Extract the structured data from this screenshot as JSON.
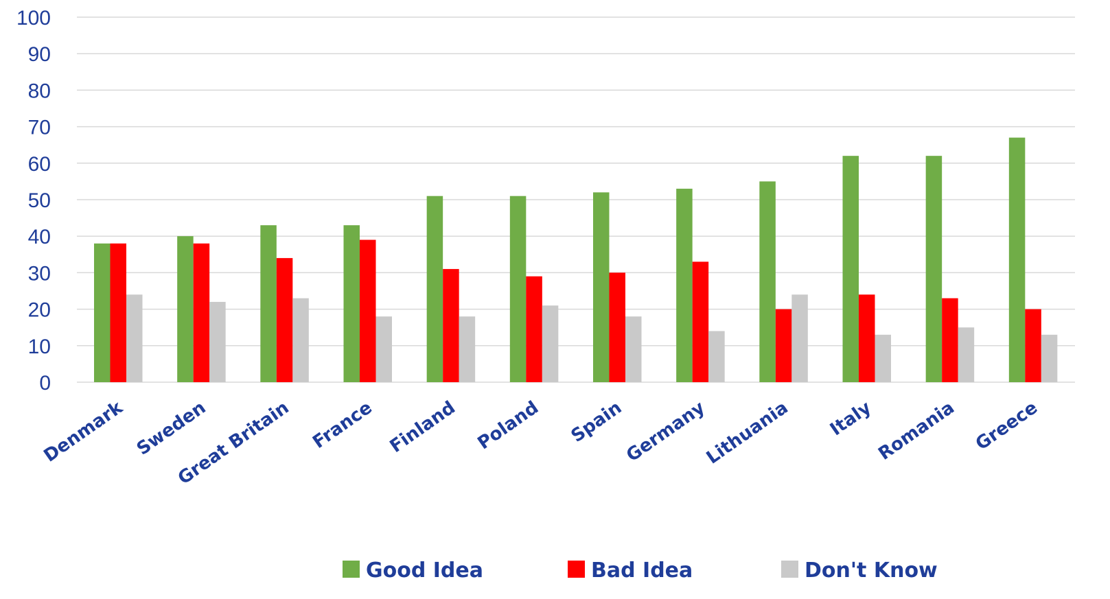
{
  "chart_data": {
    "type": "bar",
    "title": "",
    "xlabel": "",
    "ylabel": "",
    "ylim": [
      0,
      100
    ],
    "yticks": [
      0,
      10,
      20,
      30,
      40,
      50,
      60,
      70,
      80,
      90,
      100
    ],
    "grid": true,
    "legend_position": "bottom",
    "categories": [
      "Denmark",
      "Sweden",
      "Great Britain",
      "France",
      "Finland",
      "Poland",
      "Spain",
      "Germany",
      "Lithuania",
      "Italy",
      "Romania",
      "Greece"
    ],
    "series": [
      {
        "name": "Good Idea",
        "color": "#70ad47",
        "values": [
          38,
          40,
          43,
          43,
          51,
          51,
          52,
          53,
          55,
          62,
          62,
          67
        ]
      },
      {
        "name": "Bad Idea",
        "color": "#ff0000",
        "values": [
          38,
          38,
          34,
          39,
          31,
          29,
          30,
          33,
          20,
          24,
          23,
          20
        ]
      },
      {
        "name": "Don't Know",
        "color": "#c9c9c9",
        "values": [
          24,
          22,
          23,
          18,
          18,
          21,
          18,
          14,
          24,
          13,
          15,
          13
        ]
      }
    ]
  }
}
